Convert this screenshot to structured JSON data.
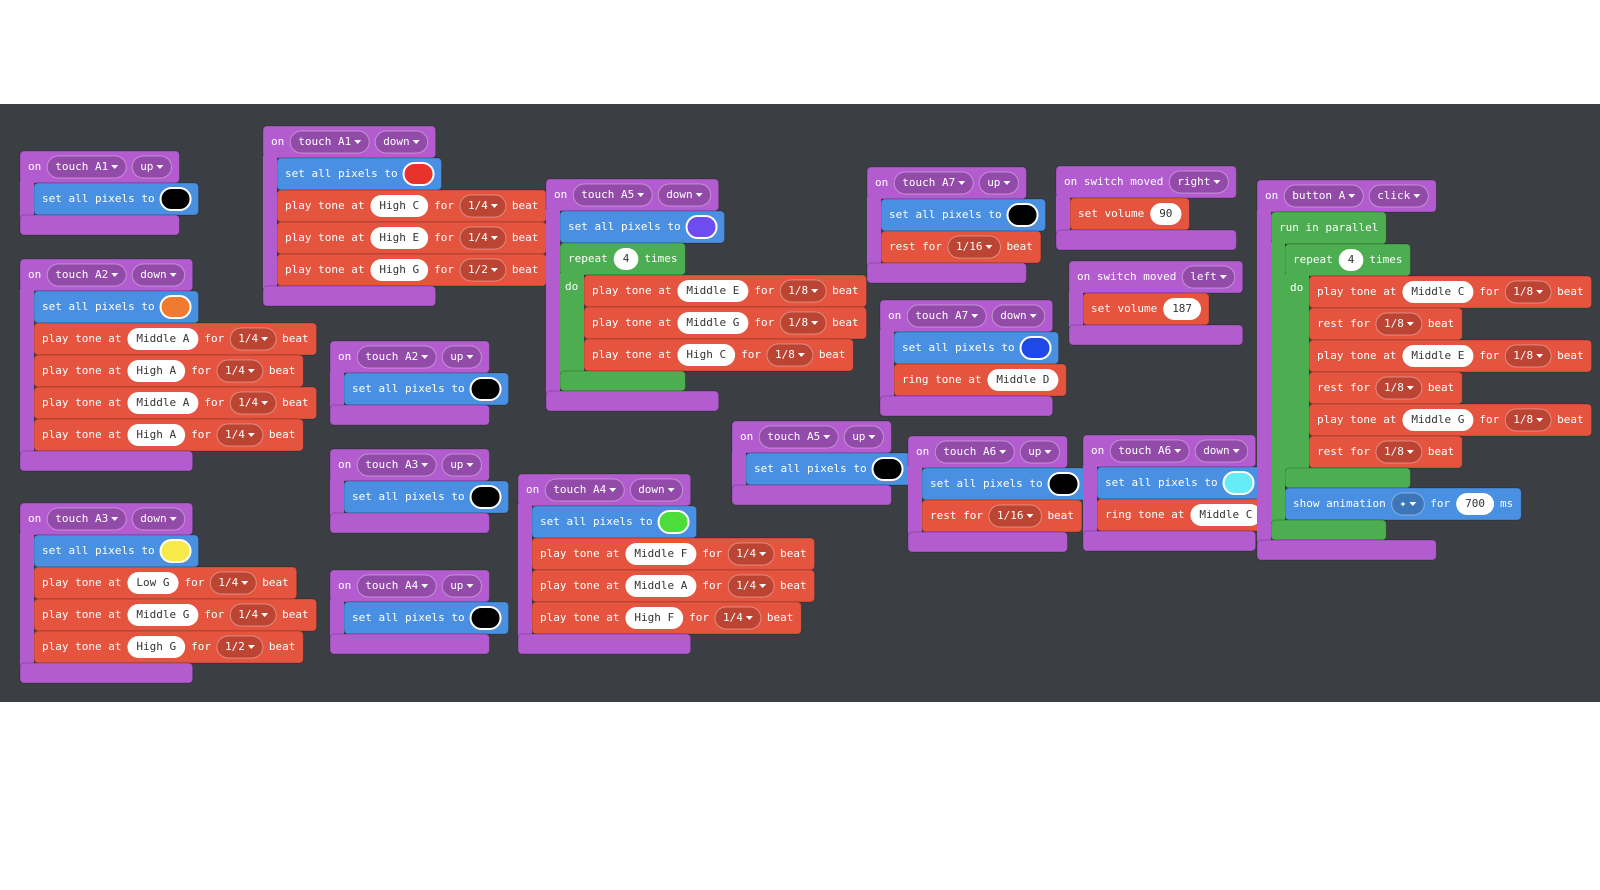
{
  "stacks": [
    {
      "color": "#b35ccf",
      "parts": [
        "on",
        {
          "dropdown": "touch A1"
        },
        {
          "dropdown": "up"
        }
      ],
      "body": [
        {
          "color": "#4a90e2",
          "parts": [
            "set all pixels to",
            {
              "color": "#000000"
            }
          ]
        }
      ]
    },
    {
      "color": "#b35ccf",
      "parts": [
        "on",
        {
          "dropdown": "touch A2"
        },
        {
          "dropdown": "down"
        }
      ],
      "body": [
        {
          "color": "#4a90e2",
          "parts": [
            "set all pixels to",
            {
              "color": "#f07a30"
            }
          ]
        },
        {
          "color": "#e4543f",
          "parts": [
            "play tone at",
            {
              "field": "Middle A"
            },
            "for",
            {
              "dropdown": "1/4"
            },
            "beat"
          ]
        },
        {
          "color": "#e4543f",
          "parts": [
            "play tone at",
            {
              "field": "High A"
            },
            "for",
            {
              "dropdown": "1/4"
            },
            "beat"
          ]
        },
        {
          "color": "#e4543f",
          "parts": [
            "play tone at",
            {
              "field": "Middle A"
            },
            "for",
            {
              "dropdown": "1/4"
            },
            "beat"
          ]
        },
        {
          "color": "#e4543f",
          "parts": [
            "play tone at",
            {
              "field": "High A"
            },
            "for",
            {
              "dropdown": "1/4"
            },
            "beat"
          ]
        }
      ]
    },
    {
      "color": "#b35ccf",
      "parts": [
        "on",
        {
          "dropdown": "touch A3"
        },
        {
          "dropdown": "down"
        }
      ],
      "body": [
        {
          "color": "#4a90e2",
          "parts": [
            "set all pixels to",
            {
              "color": "#f5ea4a"
            }
          ]
        },
        {
          "color": "#e4543f",
          "parts": [
            "play tone at",
            {
              "field": "Low G"
            },
            "for",
            {
              "dropdown": "1/4"
            },
            "beat"
          ]
        },
        {
          "color": "#e4543f",
          "parts": [
            "play tone at",
            {
              "field": "Middle G"
            },
            "for",
            {
              "dropdown": "1/4"
            },
            "beat"
          ]
        },
        {
          "color": "#e4543f",
          "parts": [
            "play tone at",
            {
              "field": "High G"
            },
            "for",
            {
              "dropdown": "1/2"
            },
            "beat"
          ]
        }
      ]
    },
    {
      "color": "#b35ccf",
      "parts": [
        "on",
        {
          "dropdown": "touch A1"
        },
        {
          "dropdown": "down"
        }
      ],
      "body": [
        {
          "color": "#4a90e2",
          "parts": [
            "set all pixels to",
            {
              "color": "#e8322c"
            }
          ]
        },
        {
          "color": "#e4543f",
          "parts": [
            "play tone at",
            {
              "field": "High C"
            },
            "for",
            {
              "dropdown": "1/4"
            },
            "beat"
          ]
        },
        {
          "color": "#e4543f",
          "parts": [
            "play tone at",
            {
              "field": "High E"
            },
            "for",
            {
              "dropdown": "1/4"
            },
            "beat"
          ]
        },
        {
          "color": "#e4543f",
          "parts": [
            "play tone at",
            {
              "field": "High G"
            },
            "for",
            {
              "dropdown": "1/2"
            },
            "beat"
          ]
        }
      ]
    },
    {
      "color": "#b35ccf",
      "parts": [
        "on",
        {
          "dropdown": "touch A2"
        },
        {
          "dropdown": "up"
        }
      ],
      "body": [
        {
          "color": "#4a90e2",
          "parts": [
            "set all pixels to",
            {
              "color": "#000000"
            }
          ]
        }
      ]
    },
    {
      "color": "#b35ccf",
      "parts": [
        "on",
        {
          "dropdown": "touch A3"
        },
        {
          "dropdown": "up"
        }
      ],
      "body": [
        {
          "color": "#4a90e2",
          "parts": [
            "set all pixels to",
            {
              "color": "#000000"
            }
          ]
        }
      ]
    },
    {
      "color": "#b35ccf",
      "parts": [
        "on",
        {
          "dropdown": "touch A4"
        },
        {
          "dropdown": "up"
        }
      ],
      "body": [
        {
          "color": "#4a90e2",
          "parts": [
            "set all pixels to",
            {
              "color": "#000000"
            }
          ]
        }
      ]
    },
    {
      "color": "#b35ccf",
      "parts": [
        "on",
        {
          "dropdown": "touch A5"
        },
        {
          "dropdown": "down"
        }
      ],
      "body": [
        {
          "color": "#4a90e2",
          "parts": [
            "set all pixels to",
            {
              "color": "#6f4cf0"
            }
          ]
        },
        {
          "color": "#4cae50",
          "parts": [
            "repeat",
            {
              "field": 4
            },
            "times"
          ],
          "arm": "do",
          "body": [
            {
              "color": "#e4543f",
              "parts": [
                "play tone at",
                {
                  "field": "Middle E"
                },
                "for",
                {
                  "dropdown": "1/8"
                },
                "beat"
              ]
            },
            {
              "color": "#e4543f",
              "parts": [
                "play tone at",
                {
                  "field": "Middle G"
                },
                "for",
                {
                  "dropdown": "1/8"
                },
                "beat"
              ]
            },
            {
              "color": "#e4543f",
              "parts": [
                "play tone at",
                {
                  "field": "High C"
                },
                "for",
                {
                  "dropdown": "1/8"
                },
                "beat"
              ]
            }
          ]
        }
      ]
    },
    {
      "color": "#b35ccf",
      "parts": [
        "on",
        {
          "dropdown": "touch A4"
        },
        {
          "dropdown": "down"
        }
      ],
      "body": [
        {
          "color": "#4a90e2",
          "parts": [
            "set all pixels to",
            {
              "color": "#4cdc3c"
            }
          ]
        },
        {
          "color": "#e4543f",
          "parts": [
            "play tone at",
            {
              "field": "Middle F"
            },
            "for",
            {
              "dropdown": "1/4"
            },
            "beat"
          ]
        },
        {
          "color": "#e4543f",
          "parts": [
            "play tone at",
            {
              "field": "Middle A"
            },
            "for",
            {
              "dropdown": "1/4"
            },
            "beat"
          ]
        },
        {
          "color": "#e4543f",
          "parts": [
            "play tone at",
            {
              "field": "High F"
            },
            "for",
            {
              "dropdown": "1/4"
            },
            "beat"
          ]
        }
      ]
    },
    {
      "color": "#b35ccf",
      "parts": [
        "on",
        {
          "dropdown": "touch A5"
        },
        {
          "dropdown": "up"
        }
      ],
      "body": [
        {
          "color": "#4a90e2",
          "parts": [
            "set all pixels to",
            {
              "color": "#000000"
            }
          ]
        }
      ]
    },
    {
      "color": "#b35ccf",
      "parts": [
        "on",
        {
          "dropdown": "touch A7"
        },
        {
          "dropdown": "up"
        }
      ],
      "body": [
        {
          "color": "#4a90e2",
          "parts": [
            "set all pixels to",
            {
              "color": "#000000"
            }
          ]
        },
        {
          "color": "#e4543f",
          "parts": [
            "rest for",
            {
              "dropdown": "1/16"
            },
            "beat"
          ]
        }
      ]
    },
    {
      "color": "#b35ccf",
      "parts": [
        "on",
        {
          "dropdown": "touch A7"
        },
        {
          "dropdown": "down"
        }
      ],
      "body": [
        {
          "color": "#4a90e2",
          "parts": [
            "set all pixels to",
            {
              "color": "#1e48e8"
            }
          ]
        },
        {
          "color": "#e4543f",
          "parts": [
            "ring tone at",
            {
              "field": "Middle D"
            }
          ]
        }
      ]
    },
    {
      "color": "#b35ccf",
      "parts": [
        "on",
        {
          "dropdown": "touch A6"
        },
        {
          "dropdown": "up"
        }
      ],
      "body": [
        {
          "color": "#4a90e2",
          "parts": [
            "set all pixels to",
            {
              "color": "#000000"
            }
          ]
        },
        {
          "color": "#e4543f",
          "parts": [
            "rest for",
            {
              "dropdown": "1/16"
            },
            "beat"
          ]
        }
      ]
    },
    {
      "color": "#b35ccf",
      "parts": [
        "on switch moved",
        {
          "dropdown": "right"
        }
      ],
      "body": [
        {
          "color": "#e4543f",
          "parts": [
            "set volume",
            {
              "field": 90
            }
          ]
        }
      ]
    },
    {
      "color": "#b35ccf",
      "parts": [
        "on switch moved",
        {
          "dropdown": "left"
        }
      ],
      "body": [
        {
          "color": "#e4543f",
          "parts": [
            "set volume",
            {
              "field": 187
            }
          ]
        }
      ]
    },
    {
      "color": "#b35ccf",
      "parts": [
        "on",
        {
          "dropdown": "touch A6"
        },
        {
          "dropdown": "down"
        }
      ],
      "body": [
        {
          "color": "#4a90e2",
          "parts": [
            "set all pixels to",
            {
              "color": "#66ecf5"
            }
          ]
        },
        {
          "color": "#e4543f",
          "parts": [
            "ring tone at",
            {
              "field": "Middle C"
            }
          ]
        }
      ]
    },
    {
      "color": "#b35ccf",
      "parts": [
        "on",
        {
          "dropdown": "button A"
        },
        {
          "dropdown": "click"
        }
      ],
      "body": [
        {
          "color": "#4cae50",
          "parts": [
            "run in parallel"
          ],
          "body": [
            {
              "color": "#4cae50",
              "parts": [
                "repeat",
                {
                  "field": 4
                },
                "times"
              ],
              "arm": "do",
              "body": [
                {
                  "color": "#e4543f",
                  "parts": [
                    "play tone at",
                    {
                      "field": "Middle C"
                    },
                    "for",
                    {
                      "dropdown": "1/8"
                    },
                    "beat"
                  ]
                },
                {
                  "color": "#e4543f",
                  "parts": [
                    "rest for",
                    {
                      "dropdown": "1/8"
                    },
                    "beat"
                  ]
                },
                {
                  "color": "#e4543f",
                  "parts": [
                    "play tone at",
                    {
                      "field": "Middle E"
                    },
                    "for",
                    {
                      "dropdown": "1/8"
                    },
                    "beat"
                  ]
                },
                {
                  "color": "#e4543f",
                  "parts": [
                    "rest for",
                    {
                      "dropdown": "1/8"
                    },
                    "beat"
                  ]
                },
                {
                  "color": "#e4543f",
                  "parts": [
                    "play tone at",
                    {
                      "field": "Middle G"
                    },
                    "for",
                    {
                      "dropdown": "1/8"
                    },
                    "beat"
                  ]
                },
                {
                  "color": "#e4543f",
                  "parts": [
                    "rest for",
                    {
                      "dropdown": "1/8"
                    },
                    "beat"
                  ]
                }
              ]
            },
            {
              "color": "#4a90e2",
              "parts": [
                "show animation",
                {
                  "dropdown": "✦"
                },
                "for",
                {
                  "field": 700
                },
                "ms"
              ]
            }
          ]
        }
      ]
    }
  ]
}
